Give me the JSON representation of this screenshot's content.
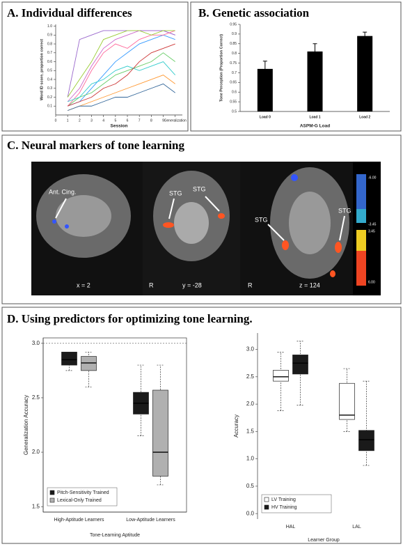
{
  "chart_data": [
    {
      "type": "line",
      "title": "A. Individual differences",
      "xlabel": "Session",
      "ylabel": "Word ID score, proportion correct",
      "x": [
        1,
        2,
        3,
        4,
        5,
        6,
        7,
        8,
        9,
        10
      ],
      "xlim": [
        0,
        10.6
      ],
      "xticks": [
        0,
        1,
        2,
        3,
        4,
        5,
        6,
        7,
        8,
        9,
        {
          "value": 10,
          "label": "Generalization"
        }
      ],
      "ylim": [
        0,
        1.02
      ],
      "yticks": [
        0.1,
        0.2,
        0.3,
        0.4,
        0.5,
        0.6,
        0.7,
        0.8,
        0.9,
        {
          "value": 1,
          "label": "1.0"
        }
      ],
      "series": [
        {
          "color": "#cc66cc",
          "values": [
            0.15,
            0.3,
            0.55,
            0.75,
            0.85,
            0.9,
            0.95,
            0.95,
            0.95,
            0.9
          ]
        },
        {
          "color": "#3399ff",
          "values": [
            0.1,
            0.15,
            0.3,
            0.45,
            0.6,
            0.7,
            0.8,
            0.85,
            0.9,
            0.85
          ]
        },
        {
          "color": "#9966cc",
          "values": [
            0.2,
            0.85,
            0.9,
            0.95,
            0.95,
            0.95,
            0.95,
            0.95,
            0.95,
            0.9
          ]
        },
        {
          "color": "#66cc66",
          "values": [
            0.1,
            0.2,
            0.25,
            0.35,
            0.45,
            0.5,
            0.55,
            0.6,
            0.7,
            0.6
          ]
        },
        {
          "color": "#ff9933",
          "values": [
            0.05,
            0.1,
            0.15,
            0.2,
            0.25,
            0.3,
            0.35,
            0.4,
            0.45,
            0.35
          ]
        },
        {
          "color": "#ff6699",
          "values": [
            0.1,
            0.25,
            0.5,
            0.7,
            0.8,
            0.75,
            0.85,
            0.9,
            0.9,
            0.95
          ]
        },
        {
          "color": "#33cccc",
          "values": [
            0.15,
            0.2,
            0.35,
            0.4,
            0.5,
            0.55,
            0.5,
            0.55,
            0.6,
            0.45
          ]
        },
        {
          "color": "#336699",
          "values": [
            0.05,
            0.1,
            0.1,
            0.15,
            0.2,
            0.2,
            0.25,
            0.3,
            0.35,
            0.25
          ]
        },
        {
          "color": "#99cc33",
          "values": [
            0.2,
            0.4,
            0.6,
            0.85,
            0.9,
            0.95,
            0.95,
            0.9,
            0.95,
            0.95
          ]
        },
        {
          "color": "#cc3333",
          "values": [
            0.1,
            0.15,
            0.2,
            0.3,
            0.35,
            0.45,
            0.6,
            0.7,
            0.75,
            0.8
          ]
        }
      ]
    },
    {
      "type": "bar",
      "title": "B. Genetic association",
      "xlabel": "ASPM-G Load",
      "ylabel": "Tone Perception (Proportion Correct)",
      "categories": [
        "Load 0",
        "Load 1",
        "Load 2"
      ],
      "values": [
        0.72,
        0.81,
        0.89
      ],
      "errors": [
        0.04,
        0.04,
        0.02
      ],
      "color": "#000000",
      "ylim": [
        0.5,
        0.95
      ],
      "yticks": [
        0.5,
        0.55,
        0.6,
        0.65,
        0.7,
        0.75,
        0.8,
        0.85,
        0.9,
        0.95
      ]
    },
    {
      "type": "box",
      "xlabel": "Tone-Learning Aptitude",
      "ylabel": "Generalization Accuracy",
      "categories": [
        "High-Aptitude Learners",
        "Low-Aptitude Learners"
      ],
      "hline": 3.0,
      "ylim": [
        1.45,
        3.05
      ],
      "yticks": [
        {
          "value": 1.5,
          "label": "1.5"
        },
        {
          "value": 2,
          "label": "2.0"
        },
        {
          "value": 2.5,
          "label": "2.5"
        },
        {
          "value": 3,
          "label": "3.0"
        }
      ],
      "series": [
        {
          "name": "Pitch-Sensitivity Trained",
          "color": "#1a1a1a",
          "whisker_low": [
            2.75,
            2.15
          ],
          "q1": [
            2.8,
            2.35
          ],
          "median": [
            2.85,
            2.45
          ],
          "q3": [
            2.92,
            2.55
          ],
          "whisker_high": [
            2.92,
            2.8
          ]
        },
        {
          "name": "Lexical-Only Trained",
          "color": "#b0b0b0",
          "whisker_low": [
            2.6,
            1.7
          ],
          "q1": [
            2.75,
            1.78
          ],
          "median": [
            2.82,
            2.0
          ],
          "q3": [
            2.88,
            2.57
          ],
          "whisker_high": [
            2.92,
            2.8
          ]
        }
      ]
    },
    {
      "type": "box",
      "xlabel": "Learner Group",
      "ylabel": "Accuracy",
      "categories": [
        "HAL",
        "LAL"
      ],
      "ylim": [
        -0.1,
        3.3
      ],
      "yticks": [
        {
          "value": 0,
          "label": "0.0"
        },
        {
          "value": 0.5,
          "label": "0.5"
        },
        {
          "value": 1,
          "label": "1.0"
        },
        {
          "value": 1.5,
          "label": "1.5"
        },
        {
          "value": 2,
          "label": "2.0"
        },
        {
          "value": 2.5,
          "label": "2.5"
        },
        {
          "value": 3,
          "label": "3.0"
        }
      ],
      "series": [
        {
          "name": "LV Training",
          "color": "#ffffff",
          "whisker_low": [
            1.88,
            1.5
          ],
          "q1": [
            2.42,
            1.72
          ],
          "median": [
            2.5,
            1.8
          ],
          "q3": [
            2.62,
            2.38
          ],
          "whisker_high": [
            2.95,
            2.65
          ]
        },
        {
          "name": "HV Training",
          "color": "#1a1a1a",
          "whisker_low": [
            1.98,
            0.88
          ],
          "q1": [
            2.55,
            1.15
          ],
          "median": [
            2.75,
            1.35
          ],
          "q3": [
            2.9,
            1.52
          ],
          "whisker_high": [
            3.15,
            2.42
          ]
        }
      ]
    }
  ],
  "panel_c": {
    "title": "C. Neural markers of tone learning",
    "labels": [
      "Ant. Cing.",
      "STG",
      "STG",
      "STG",
      "STG",
      "x = 2",
      "R",
      "y = -28",
      "R",
      "z = 124"
    ],
    "colorbar": [
      "-6.00",
      "-3.45",
      "3.45",
      "6.00"
    ]
  },
  "panel_d": {
    "title": "D. Using predictors for optimizing tone learning."
  }
}
